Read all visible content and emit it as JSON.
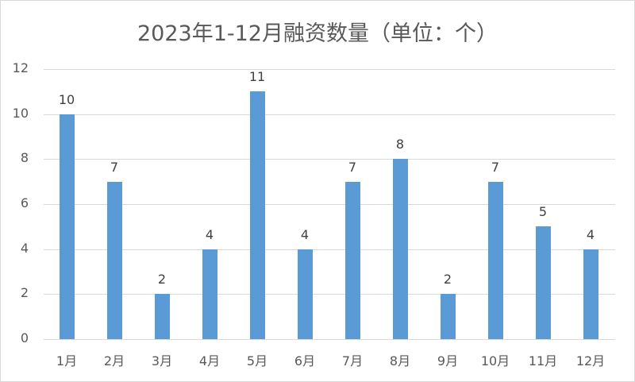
{
  "chart_data": {
    "type": "bar",
    "title": "2023年1-12月融资数量（单位：个）",
    "xlabel": "",
    "ylabel": "",
    "categories": [
      "1月",
      "2月",
      "3月",
      "4月",
      "5月",
      "6月",
      "7月",
      "8月",
      "9月",
      "10月",
      "11月",
      "12月"
    ],
    "values": [
      10,
      7,
      2,
      4,
      11,
      4,
      7,
      8,
      2,
      7,
      5,
      4
    ],
    "ylim": [
      0,
      12
    ],
    "yticks": [
      0,
      2,
      4,
      6,
      8,
      10,
      12
    ],
    "grid": true,
    "legend": null,
    "data_labels": true,
    "bar_color": "#5b9bd5"
  },
  "chart": {
    "title": "2023年1-12月融资数量（单位：个）",
    "yticks": [
      "0",
      "2",
      "4",
      "6",
      "8",
      "10",
      "12"
    ],
    "bars": [
      {
        "label": "1月",
        "value": "10"
      },
      {
        "label": "2月",
        "value": "7"
      },
      {
        "label": "3月",
        "value": "2"
      },
      {
        "label": "4月",
        "value": "4"
      },
      {
        "label": "5月",
        "value": "11"
      },
      {
        "label": "6月",
        "value": "4"
      },
      {
        "label": "7月",
        "value": "7"
      },
      {
        "label": "8月",
        "value": "8"
      },
      {
        "label": "9月",
        "value": "2"
      },
      {
        "label": "10月",
        "value": "7"
      },
      {
        "label": "11月",
        "value": "5"
      },
      {
        "label": "12月",
        "value": "4"
      }
    ]
  }
}
